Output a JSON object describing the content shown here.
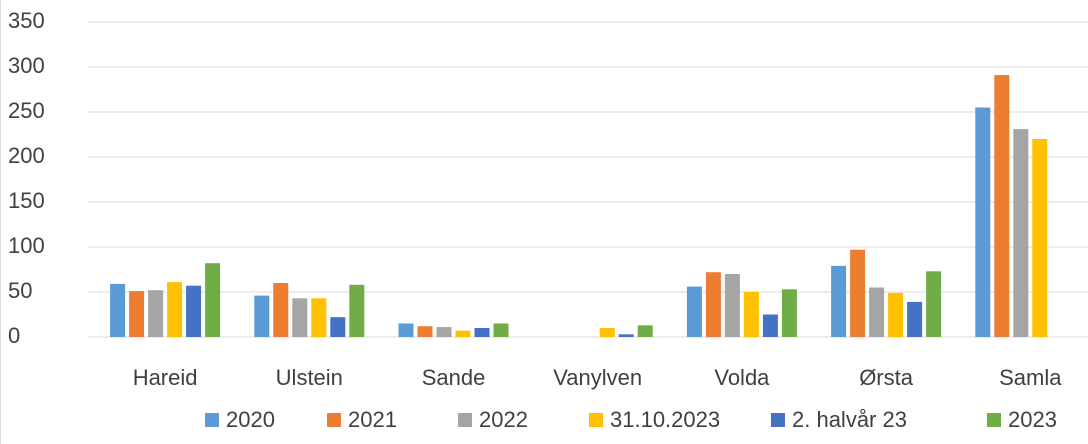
{
  "chart_data": {
    "type": "bar",
    "categories": [
      "Hareid",
      "Ulstein",
      "Sande",
      "Vanylven",
      "Volda",
      "Ørsta",
      "Samla"
    ],
    "series": [
      {
        "name": "2020",
        "color": "#5b9bd5",
        "values": [
          59,
          46,
          15,
          null,
          56,
          79,
          255
        ]
      },
      {
        "name": "2021",
        "color": "#ed7d31",
        "values": [
          51,
          60,
          12,
          null,
          72,
          97,
          291
        ]
      },
      {
        "name": "2022",
        "color": "#a5a5a5",
        "values": [
          52,
          43,
          11,
          null,
          70,
          55,
          231
        ]
      },
      {
        "name": "31.10.2023",
        "color": "#ffc000",
        "values": [
          61,
          43,
          7,
          10,
          50,
          49,
          220
        ]
      },
      {
        "name": "2. halvår 23",
        "color": "#4472c4",
        "values": [
          57,
          22,
          10,
          3,
          25,
          39,
          null
        ]
      },
      {
        "name": "2023",
        "color": "#70ad47",
        "values": [
          82,
          58,
          15,
          13,
          53,
          73,
          null
        ]
      }
    ],
    "ylim": [
      0,
      350
    ],
    "yticks": [
      0,
      50,
      100,
      150,
      200,
      250,
      300,
      350
    ],
    "grid": true,
    "legend": "bottom"
  }
}
